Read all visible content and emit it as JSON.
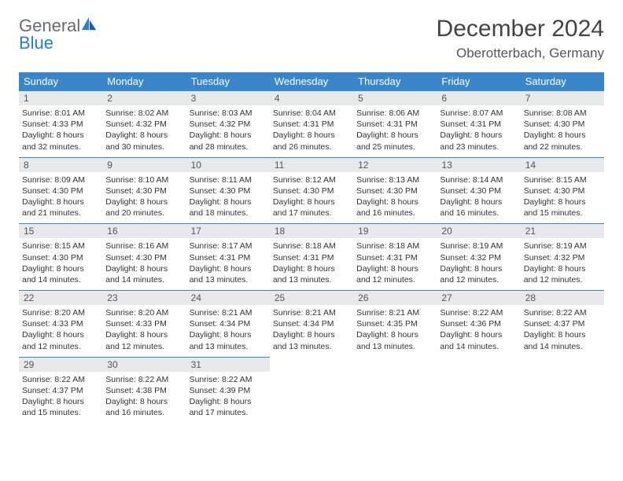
{
  "logo": {
    "word1": "General",
    "word2": "Blue"
  },
  "header": {
    "title": "December 2024",
    "location": "Oberotterbach, Germany"
  },
  "colors": {
    "header_bg": "#3a86c8",
    "header_text": "#ffffff",
    "daynum_bg": "#e8e9ea",
    "row_border": "#3a86c8",
    "logo_gray": "#6b6b6b",
    "logo_blue": "#2a7fc9"
  },
  "weekdays": [
    "Sunday",
    "Monday",
    "Tuesday",
    "Wednesday",
    "Thursday",
    "Friday",
    "Saturday"
  ],
  "cells": [
    {
      "day": "1",
      "sunrise": "Sunrise: 8:01 AM",
      "sunset": "Sunset: 4:33 PM",
      "daylight1": "Daylight: 8 hours",
      "daylight2": "and 32 minutes."
    },
    {
      "day": "2",
      "sunrise": "Sunrise: 8:02 AM",
      "sunset": "Sunset: 4:32 PM",
      "daylight1": "Daylight: 8 hours",
      "daylight2": "and 30 minutes."
    },
    {
      "day": "3",
      "sunrise": "Sunrise: 8:03 AM",
      "sunset": "Sunset: 4:32 PM",
      "daylight1": "Daylight: 8 hours",
      "daylight2": "and 28 minutes."
    },
    {
      "day": "4",
      "sunrise": "Sunrise: 8:04 AM",
      "sunset": "Sunset: 4:31 PM",
      "daylight1": "Daylight: 8 hours",
      "daylight2": "and 26 minutes."
    },
    {
      "day": "5",
      "sunrise": "Sunrise: 8:06 AM",
      "sunset": "Sunset: 4:31 PM",
      "daylight1": "Daylight: 8 hours",
      "daylight2": "and 25 minutes."
    },
    {
      "day": "6",
      "sunrise": "Sunrise: 8:07 AM",
      "sunset": "Sunset: 4:31 PM",
      "daylight1": "Daylight: 8 hours",
      "daylight2": "and 23 minutes."
    },
    {
      "day": "7",
      "sunrise": "Sunrise: 8:08 AM",
      "sunset": "Sunset: 4:30 PM",
      "daylight1": "Daylight: 8 hours",
      "daylight2": "and 22 minutes."
    },
    {
      "day": "8",
      "sunrise": "Sunrise: 8:09 AM",
      "sunset": "Sunset: 4:30 PM",
      "daylight1": "Daylight: 8 hours",
      "daylight2": "and 21 minutes."
    },
    {
      "day": "9",
      "sunrise": "Sunrise: 8:10 AM",
      "sunset": "Sunset: 4:30 PM",
      "daylight1": "Daylight: 8 hours",
      "daylight2": "and 20 minutes."
    },
    {
      "day": "10",
      "sunrise": "Sunrise: 8:11 AM",
      "sunset": "Sunset: 4:30 PM",
      "daylight1": "Daylight: 8 hours",
      "daylight2": "and 18 minutes."
    },
    {
      "day": "11",
      "sunrise": "Sunrise: 8:12 AM",
      "sunset": "Sunset: 4:30 PM",
      "daylight1": "Daylight: 8 hours",
      "daylight2": "and 17 minutes."
    },
    {
      "day": "12",
      "sunrise": "Sunrise: 8:13 AM",
      "sunset": "Sunset: 4:30 PM",
      "daylight1": "Daylight: 8 hours",
      "daylight2": "and 16 minutes."
    },
    {
      "day": "13",
      "sunrise": "Sunrise: 8:14 AM",
      "sunset": "Sunset: 4:30 PM",
      "daylight1": "Daylight: 8 hours",
      "daylight2": "and 16 minutes."
    },
    {
      "day": "14",
      "sunrise": "Sunrise: 8:15 AM",
      "sunset": "Sunset: 4:30 PM",
      "daylight1": "Daylight: 8 hours",
      "daylight2": "and 15 minutes."
    },
    {
      "day": "15",
      "sunrise": "Sunrise: 8:15 AM",
      "sunset": "Sunset: 4:30 PM",
      "daylight1": "Daylight: 8 hours",
      "daylight2": "and 14 minutes."
    },
    {
      "day": "16",
      "sunrise": "Sunrise: 8:16 AM",
      "sunset": "Sunset: 4:30 PM",
      "daylight1": "Daylight: 8 hours",
      "daylight2": "and 14 minutes."
    },
    {
      "day": "17",
      "sunrise": "Sunrise: 8:17 AM",
      "sunset": "Sunset: 4:31 PM",
      "daylight1": "Daylight: 8 hours",
      "daylight2": "and 13 minutes."
    },
    {
      "day": "18",
      "sunrise": "Sunrise: 8:18 AM",
      "sunset": "Sunset: 4:31 PM",
      "daylight1": "Daylight: 8 hours",
      "daylight2": "and 13 minutes."
    },
    {
      "day": "19",
      "sunrise": "Sunrise: 8:18 AM",
      "sunset": "Sunset: 4:31 PM",
      "daylight1": "Daylight: 8 hours",
      "daylight2": "and 12 minutes."
    },
    {
      "day": "20",
      "sunrise": "Sunrise: 8:19 AM",
      "sunset": "Sunset: 4:32 PM",
      "daylight1": "Daylight: 8 hours",
      "daylight2": "and 12 minutes."
    },
    {
      "day": "21",
      "sunrise": "Sunrise: 8:19 AM",
      "sunset": "Sunset: 4:32 PM",
      "daylight1": "Daylight: 8 hours",
      "daylight2": "and 12 minutes."
    },
    {
      "day": "22",
      "sunrise": "Sunrise: 8:20 AM",
      "sunset": "Sunset: 4:33 PM",
      "daylight1": "Daylight: 8 hours",
      "daylight2": "and 12 minutes."
    },
    {
      "day": "23",
      "sunrise": "Sunrise: 8:20 AM",
      "sunset": "Sunset: 4:33 PM",
      "daylight1": "Daylight: 8 hours",
      "daylight2": "and 12 minutes."
    },
    {
      "day": "24",
      "sunrise": "Sunrise: 8:21 AM",
      "sunset": "Sunset: 4:34 PM",
      "daylight1": "Daylight: 8 hours",
      "daylight2": "and 13 minutes."
    },
    {
      "day": "25",
      "sunrise": "Sunrise: 8:21 AM",
      "sunset": "Sunset: 4:34 PM",
      "daylight1": "Daylight: 8 hours",
      "daylight2": "and 13 minutes."
    },
    {
      "day": "26",
      "sunrise": "Sunrise: 8:21 AM",
      "sunset": "Sunset: 4:35 PM",
      "daylight1": "Daylight: 8 hours",
      "daylight2": "and 13 minutes."
    },
    {
      "day": "27",
      "sunrise": "Sunrise: 8:22 AM",
      "sunset": "Sunset: 4:36 PM",
      "daylight1": "Daylight: 8 hours",
      "daylight2": "and 14 minutes."
    },
    {
      "day": "28",
      "sunrise": "Sunrise: 8:22 AM",
      "sunset": "Sunset: 4:37 PM",
      "daylight1": "Daylight: 8 hours",
      "daylight2": "and 14 minutes."
    },
    {
      "day": "29",
      "sunrise": "Sunrise: 8:22 AM",
      "sunset": "Sunset: 4:37 PM",
      "daylight1": "Daylight: 8 hours",
      "daylight2": "and 15 minutes."
    },
    {
      "day": "30",
      "sunrise": "Sunrise: 8:22 AM",
      "sunset": "Sunset: 4:38 PM",
      "daylight1": "Daylight: 8 hours",
      "daylight2": "and 16 minutes."
    },
    {
      "day": "31",
      "sunrise": "Sunrise: 8:22 AM",
      "sunset": "Sunset: 4:39 PM",
      "daylight1": "Daylight: 8 hours",
      "daylight2": "and 17 minutes."
    }
  ]
}
